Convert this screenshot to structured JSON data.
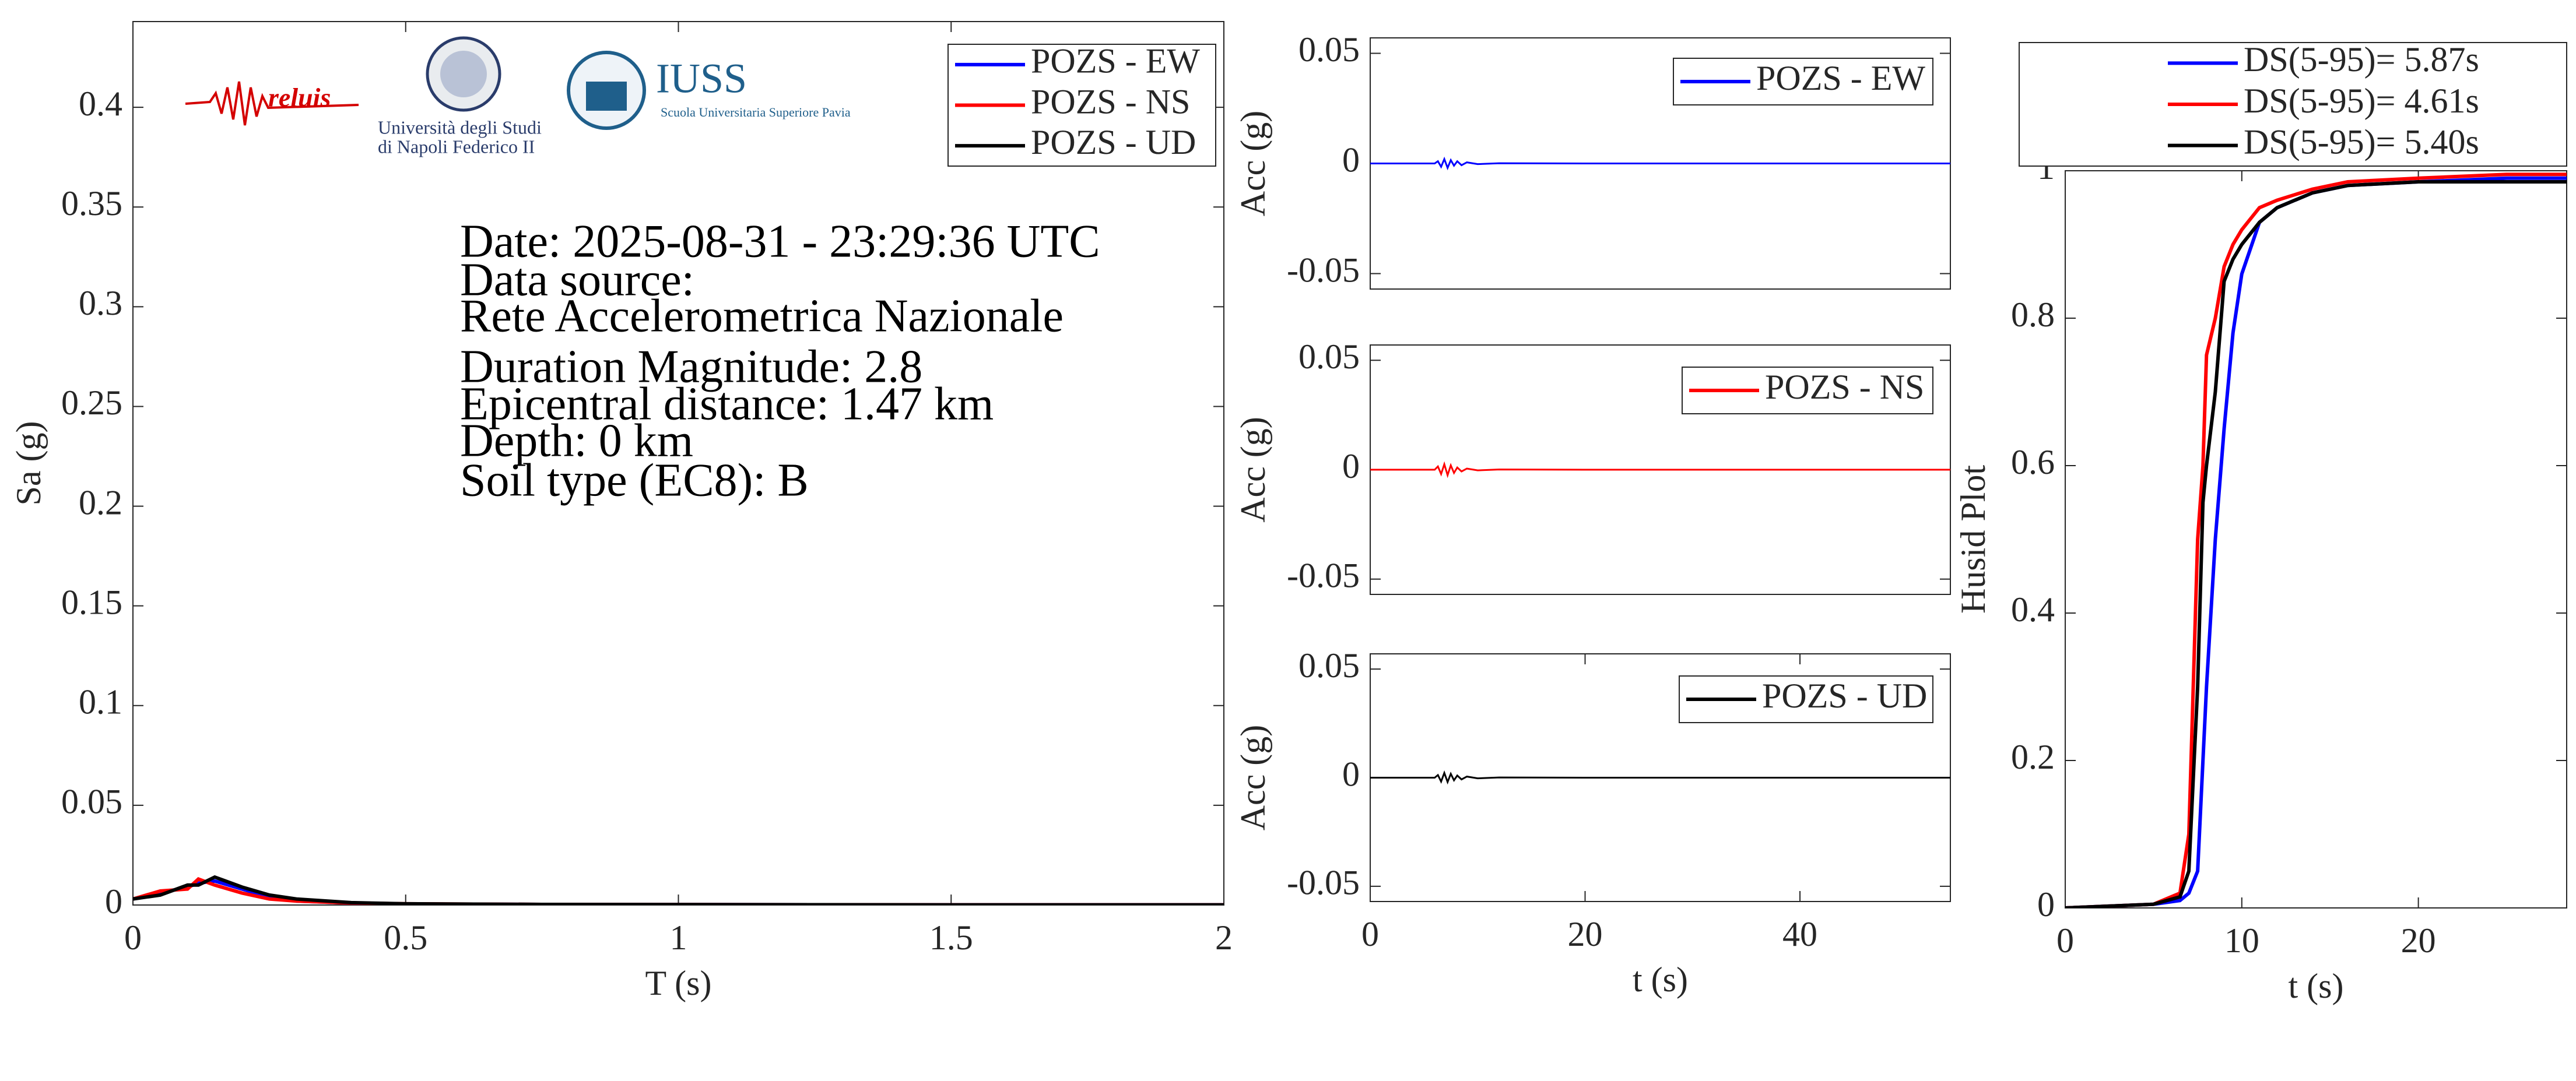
{
  "chart_data": [
    {
      "type": "line",
      "xlabel": "T (s)",
      "ylabel": "Sa (g)",
      "xlim": [
        0,
        2
      ],
      "ylim": [
        0,
        0.443
      ],
      "xticks": [
        0,
        0.5,
        1,
        1.5,
        2
      ],
      "yticks": [
        0,
        0.05,
        0.1,
        0.15,
        0.2,
        0.25,
        0.3,
        0.35,
        0.4
      ],
      "legend": "upper right",
      "annotations": [
        "Date: 2025-08-31 - 23:29:36 UTC",
        "Data source:",
        "Rete Accelerometrica Nazionale",
        "Duration Magnitude: 2.8",
        "Epicentral distance: 1.47 km",
        "Depth: 0 km",
        "Soil type (EC8): B"
      ],
      "logos": [
        "reluis",
        "Università degli Studi",
        "di Napoli Federico II",
        "IUSS",
        "Scuola Universitaria Superiore Pavia"
      ],
      "x": [
        0,
        0.05,
        0.1,
        0.12,
        0.15,
        0.2,
        0.25,
        0.3,
        0.4,
        0.5,
        0.75,
        1,
        1.5,
        2
      ],
      "series": [
        {
          "name": "POZS - EW",
          "color": "#0000ff",
          "values": [
            0.003,
            0.006,
            0.009,
            0.011,
            0.012,
            0.008,
            0.004,
            0.002,
            0.001,
            0.0005,
            0.0003,
            0.0002,
            0.0001,
            0.0001
          ]
        },
        {
          "name": "POZS - NS",
          "color": "#ff0000",
          "values": [
            0.003,
            0.007,
            0.008,
            0.013,
            0.01,
            0.006,
            0.003,
            0.002,
            0.001,
            0.0006,
            0.0003,
            0.0002,
            0.0001,
            0.0001
          ]
        },
        {
          "name": "POZS - UD",
          "color": "#000000",
          "values": [
            0.003,
            0.005,
            0.01,
            0.01,
            0.014,
            0.009,
            0.005,
            0.003,
            0.0012,
            0.0006,
            0.0003,
            0.0002,
            0.0001,
            0.0001
          ]
        }
      ]
    },
    {
      "type": "line",
      "ylabel": "Acc (g)",
      "xlim": [
        0,
        54
      ],
      "ylim": [
        -0.057,
        0.057
      ],
      "yticks": [
        -0.05,
        0,
        0.05
      ],
      "legend": "upper right",
      "x": [
        0,
        6,
        6.3,
        6.6,
        6.9,
        7.2,
        7.5,
        7.8,
        8.1,
        8.5,
        9,
        10,
        12,
        20,
        30,
        40,
        54
      ],
      "series": [
        {
          "name": "POZS - EW",
          "color": "#0000ff",
          "values": [
            0,
            0,
            0.001,
            -0.0015,
            0.002,
            -0.002,
            0.0015,
            -0.001,
            0.001,
            -0.0008,
            0.0005,
            -0.0003,
            0.0001,
            0,
            0,
            0,
            0
          ]
        }
      ]
    },
    {
      "type": "line",
      "ylabel": "Acc (g)",
      "xlim": [
        0,
        54
      ],
      "ylim": [
        -0.057,
        0.057
      ],
      "yticks": [
        -0.05,
        0,
        0.05
      ],
      "legend": "upper right",
      "x": [
        0,
        6,
        6.3,
        6.6,
        6.9,
        7.2,
        7.5,
        7.8,
        8.1,
        8.5,
        9,
        10,
        12,
        20,
        30,
        40,
        54
      ],
      "series": [
        {
          "name": "POZS - NS",
          "color": "#ff0000",
          "values": [
            0,
            0,
            0.0015,
            -0.002,
            0.0025,
            -0.0025,
            0.002,
            -0.0015,
            0.001,
            -0.0008,
            0.0005,
            -0.0003,
            0.0001,
            0,
            0,
            0,
            0
          ]
        }
      ]
    },
    {
      "type": "line",
      "xlabel": "t (s)",
      "ylabel": "Acc (g)",
      "xlim": [
        0,
        54
      ],
      "ylim": [
        -0.057,
        0.057
      ],
      "xticks": [
        0,
        20,
        40
      ],
      "yticks": [
        -0.05,
        0,
        0.05
      ],
      "legend": "upper right",
      "x": [
        0,
        6,
        6.3,
        6.6,
        6.9,
        7.2,
        7.5,
        7.8,
        8.1,
        8.5,
        9,
        10,
        12,
        20,
        30,
        40,
        54
      ],
      "series": [
        {
          "name": "POZS - UD",
          "color": "#000000",
          "values": [
            0,
            0,
            0.0012,
            -0.0018,
            0.0022,
            -0.002,
            0.0018,
            -0.0012,
            0.001,
            -0.0008,
            0.0005,
            -0.0003,
            0.0001,
            0,
            0,
            0,
            0
          ]
        }
      ]
    },
    {
      "type": "line",
      "xlabel": "t (s)",
      "ylabel": "Husid Plot",
      "xlim": [
        0,
        28.4
      ],
      "ylim": [
        0,
        1
      ],
      "xticks": [
        0,
        10,
        20
      ],
      "yticks": [
        0,
        0.2,
        0.4,
        0.6,
        0.8,
        1
      ],
      "legend": "outside top",
      "x": [
        0,
        5,
        6.5,
        7,
        7.5,
        7.8,
        8,
        8.5,
        9,
        9.5,
        10,
        11,
        12,
        14,
        16,
        20,
        25,
        28.4
      ],
      "series": [
        {
          "name": "DS(5-95)= 5.87s",
          "color": "#0000ff",
          "values": [
            0,
            0.005,
            0.01,
            0.02,
            0.05,
            0.2,
            0.3,
            0.5,
            0.65,
            0.78,
            0.86,
            0.93,
            0.95,
            0.97,
            0.98,
            0.985,
            0.99,
            0.99
          ]
        },
        {
          "name": "DS(5-95)= 4.61s",
          "color": "#ff0000",
          "values": [
            0,
            0.005,
            0.02,
            0.1,
            0.5,
            0.6,
            0.75,
            0.8,
            0.87,
            0.9,
            0.92,
            0.95,
            0.96,
            0.975,
            0.985,
            0.99,
            0.995,
            0.995
          ]
        },
        {
          "name": "DS(5-95)= 5.40s",
          "color": "#000000",
          "values": [
            0,
            0.005,
            0.015,
            0.05,
            0.3,
            0.55,
            0.6,
            0.7,
            0.85,
            0.88,
            0.9,
            0.93,
            0.95,
            0.97,
            0.98,
            0.985,
            0.985,
            0.985
          ]
        }
      ]
    }
  ]
}
